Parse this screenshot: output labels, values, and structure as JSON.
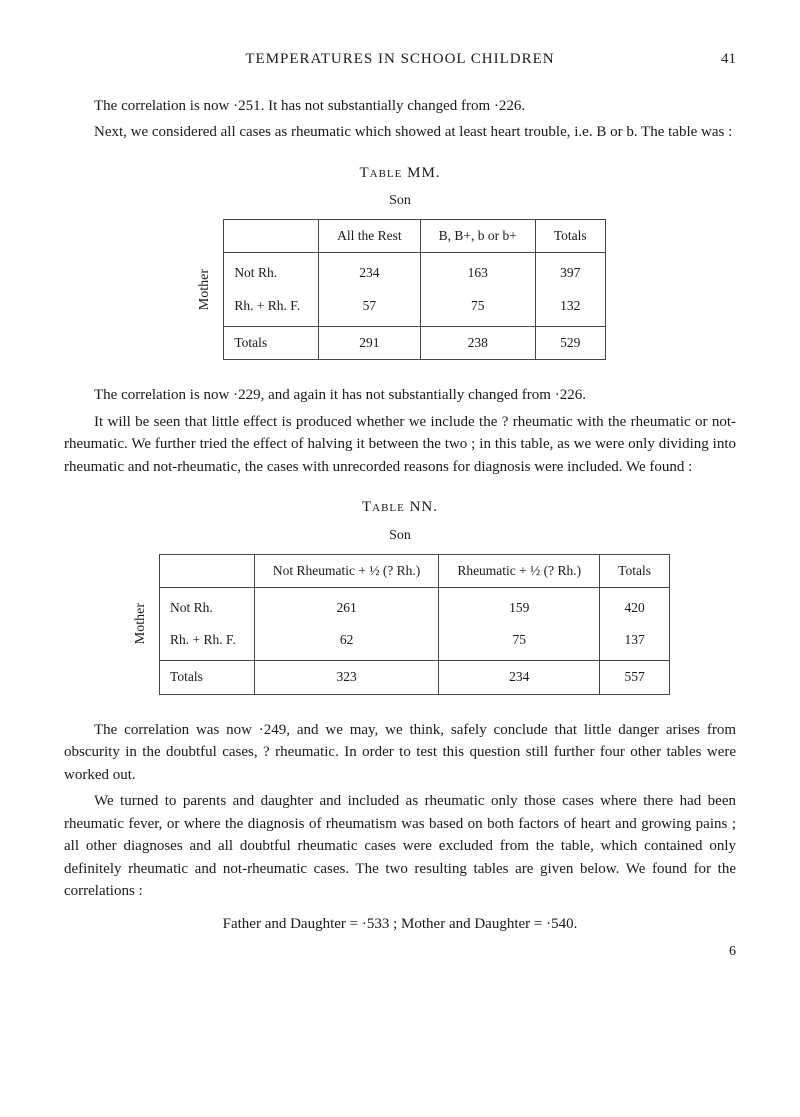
{
  "header": {
    "running_title": "TEMPERATURES IN SCHOOL CHILDREN",
    "page_number": "41"
  },
  "para1": "The correlation is now ·251.  It has not substantially changed from ·226.",
  "para2": "Next, we considered all cases as rheumatic which showed at least heart trouble, i.e. B or b.  The table was :",
  "table_mm": {
    "caption": "Table MM.",
    "subcaption": "Son",
    "side_label": "Mother",
    "columns": [
      "",
      "All the Rest",
      "B, B+, b or b+",
      "Totals"
    ],
    "rows": [
      [
        "Not Rh.",
        "234",
        "163",
        "397"
      ],
      [
        "Rh. + Rh. F.",
        "57",
        "75",
        "132"
      ]
    ],
    "totals": [
      "Totals",
      "291",
      "238",
      "529"
    ]
  },
  "para_after_mm": "The correlation is now ·229, and again it has not substantially changed from ·226.",
  "para_after_mm2": "It will be seen that little effect is produced whether we include the ? rheumatic with the rheumatic or not-rheumatic.  We further tried the effect of halving it between the two ; in this table, as we were only dividing into rheumatic and not-rheumatic, the cases with unrecorded reasons for diagnosis were included.  We found :",
  "table_nn": {
    "caption": "Table NN.",
    "subcaption": "Son",
    "side_label": "Mother",
    "columns": [
      "",
      "Not Rheumatic + ½ (? Rh.)",
      "Rheumatic + ½ (? Rh.)",
      "Totals"
    ],
    "rows": [
      [
        "Not Rh.",
        "261",
        "159",
        "420"
      ],
      [
        "Rh. + Rh. F.",
        "62",
        "75",
        "137"
      ]
    ],
    "totals": [
      "Totals",
      "323",
      "234",
      "557"
    ]
  },
  "para_after_nn1": "The correlation was now ·249, and we may, we think, safely conclude that little danger arises from obscurity in the doubtful cases, ? rheumatic.  In order to test this question still further four other tables were worked out.",
  "para_after_nn2": "We turned to parents and daughter and included as rheumatic only those cases where there had been rheumatic fever, or where the diagnosis of rheumatism was based on both factors of heart and growing pains ; all other diagnoses and all doubtful rheumatic cases were excluded from the table, which contained only definitely rheumatic and not-rheumatic cases.  The two resulting tables are given below.  We found for the correlations :",
  "equation": "Father and Daughter = ·533 ;   Mother and Daughter = ·540.",
  "foot_number": "6"
}
